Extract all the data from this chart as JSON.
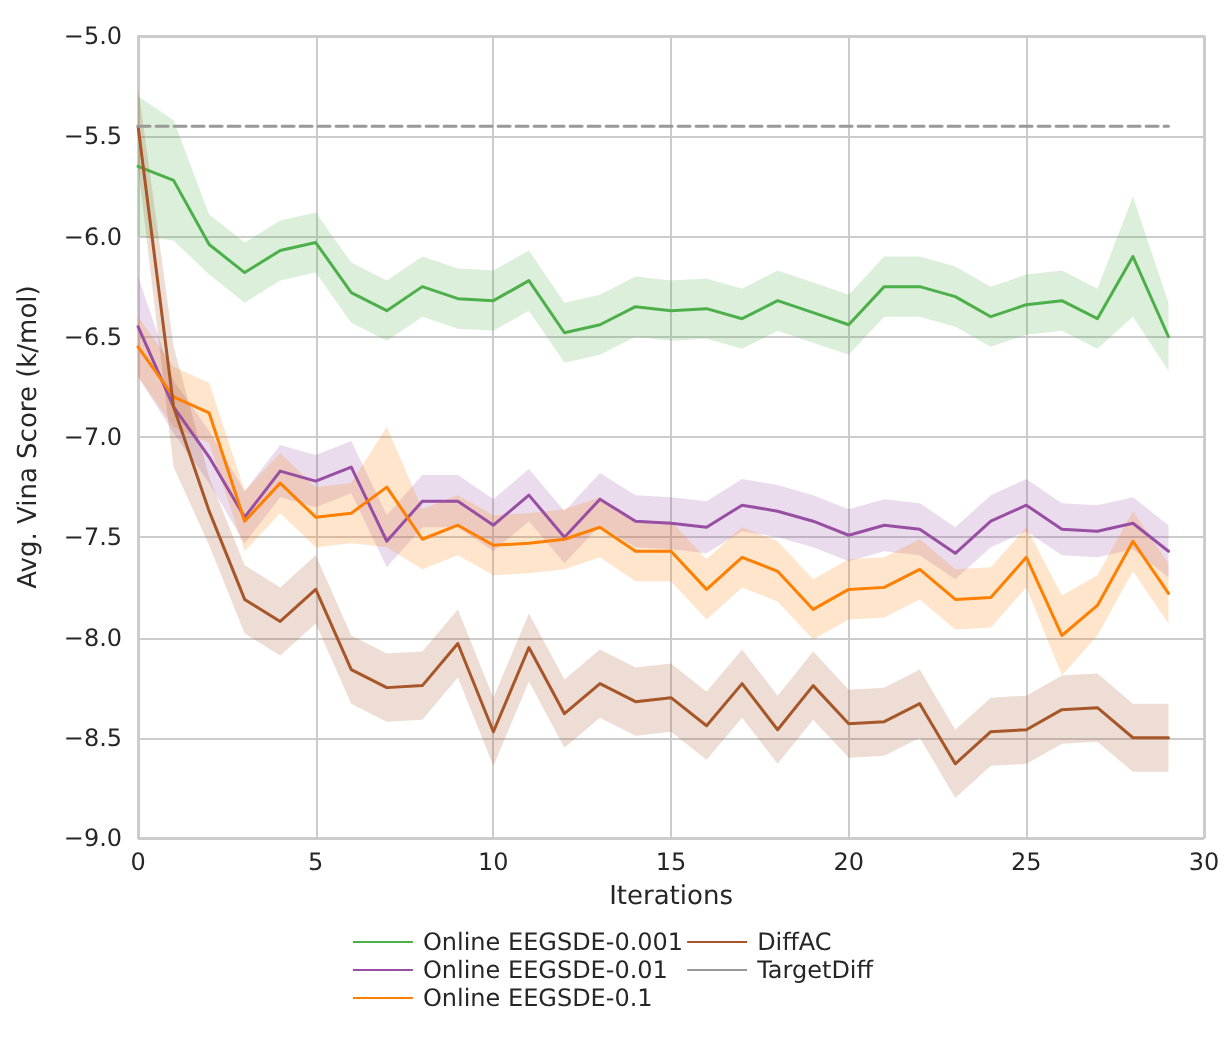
{
  "chart_data": {
    "type": "line",
    "xlabel": "Iterations",
    "ylabel": "Avg. Vina Score (k/mol)",
    "x": [
      0,
      1,
      2,
      3,
      4,
      5,
      6,
      7,
      8,
      9,
      10,
      11,
      12,
      13,
      14,
      15,
      16,
      17,
      18,
      19,
      20,
      21,
      22,
      23,
      24,
      25,
      26,
      27,
      28,
      29
    ],
    "series": [
      {
        "name": "Online EEGSDE-0.001",
        "color": "#4daf4a",
        "values": [
          -5.65,
          -5.72,
          -6.04,
          -6.18,
          -6.07,
          -6.03,
          -6.28,
          -6.37,
          -6.25,
          -6.31,
          -6.32,
          -6.22,
          -6.48,
          -6.44,
          -6.35,
          -6.37,
          -6.36,
          -6.41,
          -6.32,
          -6.38,
          -6.44,
          -6.25,
          -6.25,
          -6.3,
          -6.4,
          -6.34,
          -6.32,
          -6.41,
          -6.1,
          -6.5
        ],
        "upper": [
          -5.3,
          -5.42,
          -5.89,
          -6.03,
          -5.92,
          -5.88,
          -6.13,
          -6.22,
          -6.1,
          -6.16,
          -6.17,
          -6.07,
          -6.33,
          -6.29,
          -6.2,
          -6.22,
          -6.21,
          -6.26,
          -6.17,
          -6.23,
          -6.29,
          -6.1,
          -6.1,
          -6.15,
          -6.25,
          -6.19,
          -6.17,
          -6.26,
          -5.8,
          -6.33
        ],
        "lower": [
          -6.0,
          -6.02,
          -6.19,
          -6.33,
          -6.22,
          -6.18,
          -6.43,
          -6.52,
          -6.4,
          -6.46,
          -6.47,
          -6.37,
          -6.63,
          -6.59,
          -6.5,
          -6.52,
          -6.51,
          -6.56,
          -6.47,
          -6.53,
          -6.59,
          -6.4,
          -6.4,
          -6.45,
          -6.55,
          -6.49,
          -6.47,
          -6.56,
          -6.4,
          -6.67
        ]
      },
      {
        "name": "Online EEGSDE-0.01",
        "color": "#984ea3",
        "values": [
          -6.45,
          -6.85,
          -7.1,
          -7.4,
          -7.17,
          -7.22,
          -7.15,
          -7.52,
          -7.32,
          -7.32,
          -7.44,
          -7.29,
          -7.5,
          -7.31,
          -7.42,
          -7.43,
          -7.45,
          -7.34,
          -7.37,
          -7.42,
          -7.49,
          -7.44,
          -7.46,
          -7.58,
          -7.42,
          -7.34,
          -7.46,
          -7.47,
          -7.43,
          -7.57
        ],
        "upper": [
          -6.2,
          -6.72,
          -6.97,
          -7.27,
          -7.04,
          -7.09,
          -7.02,
          -7.39,
          -7.19,
          -7.19,
          -7.31,
          -7.16,
          -7.37,
          -7.18,
          -7.29,
          -7.3,
          -7.32,
          -7.21,
          -7.24,
          -7.29,
          -7.36,
          -7.31,
          -7.33,
          -7.45,
          -7.29,
          -7.21,
          -7.33,
          -7.34,
          -7.3,
          -7.44
        ],
        "lower": [
          -6.7,
          -6.98,
          -7.23,
          -7.53,
          -7.3,
          -7.35,
          -7.28,
          -7.65,
          -7.45,
          -7.45,
          -7.57,
          -7.42,
          -7.63,
          -7.44,
          -7.55,
          -7.56,
          -7.58,
          -7.47,
          -7.5,
          -7.55,
          -7.62,
          -7.57,
          -7.59,
          -7.71,
          -7.55,
          -7.47,
          -7.59,
          -7.6,
          -7.56,
          -7.7
        ]
      },
      {
        "name": "Online EEGSDE-0.1",
        "color": "#ff7f00",
        "values": [
          -6.55,
          -6.8,
          -6.88,
          -7.42,
          -7.23,
          -7.4,
          -7.38,
          -7.25,
          -7.51,
          -7.44,
          -7.54,
          -7.53,
          -7.51,
          -7.45,
          -7.57,
          -7.57,
          -7.76,
          -7.6,
          -7.67,
          -7.86,
          -7.76,
          -7.75,
          -7.66,
          -7.81,
          -7.8,
          -7.6,
          -7.99,
          -7.84,
          -7.52,
          -7.78
        ],
        "upper": [
          -6.4,
          -6.65,
          -6.73,
          -7.27,
          -7.08,
          -7.25,
          -7.23,
          -6.95,
          -7.36,
          -7.29,
          -7.39,
          -7.38,
          -7.36,
          -7.3,
          -7.42,
          -7.42,
          -7.61,
          -7.45,
          -7.52,
          -7.71,
          -7.61,
          -7.6,
          -7.51,
          -7.66,
          -7.65,
          -7.45,
          -7.79,
          -7.69,
          -7.37,
          -7.63
        ],
        "lower": [
          -6.7,
          -6.95,
          -7.03,
          -7.57,
          -7.38,
          -7.55,
          -7.53,
          -7.55,
          -7.66,
          -7.59,
          -7.69,
          -7.68,
          -7.66,
          -7.6,
          -7.72,
          -7.72,
          -7.91,
          -7.75,
          -7.82,
          -8.01,
          -7.91,
          -7.9,
          -7.81,
          -7.96,
          -7.95,
          -7.75,
          -8.19,
          -7.99,
          -7.67,
          -7.93
        ]
      },
      {
        "name": "DiffAC",
        "color": "#a65628",
        "values": [
          -5.45,
          -6.85,
          -7.37,
          -7.81,
          -7.92,
          -7.76,
          -8.16,
          -8.25,
          -8.24,
          -8.03,
          -8.47,
          -8.05,
          -8.38,
          -8.23,
          -8.32,
          -8.3,
          -8.44,
          -8.23,
          -8.46,
          -8.24,
          -8.43,
          -8.42,
          -8.33,
          -8.63,
          -8.47,
          -8.46,
          -8.36,
          -8.35,
          -8.5,
          -8.5
        ],
        "upper": [
          -5.25,
          -6.55,
          -7.2,
          -7.64,
          -7.75,
          -7.59,
          -7.99,
          -8.08,
          -8.07,
          -7.86,
          -8.3,
          -7.88,
          -8.21,
          -8.06,
          -8.15,
          -8.13,
          -8.27,
          -8.06,
          -8.29,
          -8.07,
          -8.26,
          -8.25,
          -8.16,
          -8.46,
          -8.3,
          -8.29,
          -8.19,
          -8.18,
          -8.33,
          -8.33
        ],
        "lower": [
          -5.65,
          -7.15,
          -7.54,
          -7.98,
          -8.09,
          -7.93,
          -8.33,
          -8.42,
          -8.41,
          -8.2,
          -8.64,
          -8.22,
          -8.55,
          -8.4,
          -8.49,
          -8.47,
          -8.61,
          -8.4,
          -8.63,
          -8.41,
          -8.6,
          -8.59,
          -8.5,
          -8.8,
          -8.64,
          -8.63,
          -8.53,
          -8.52,
          -8.67,
          -8.67
        ]
      },
      {
        "name": "TargetDiff",
        "color": "#999999",
        "line_style": "dashed",
        "x": [
          0,
          29
        ],
        "values": [
          -5.45,
          -5.45
        ]
      }
    ],
    "xlim": [
      0,
      30
    ],
    "xticks": [
      0,
      5,
      10,
      15,
      20,
      25,
      30
    ],
    "ylim": [
      -9,
      -5
    ],
    "yticks": [
      {
        "value": -9,
        "label": "−9.0"
      },
      {
        "value": -8.5,
        "label": "−8.5"
      },
      {
        "value": -8,
        "label": "−8.0"
      },
      {
        "value": -7.5,
        "label": "−7.5"
      },
      {
        "value": -7,
        "label": "−7.0"
      },
      {
        "value": -6.5,
        "label": "−6.5"
      },
      {
        "value": -6,
        "label": "−6.0"
      },
      {
        "value": -5.5,
        "label": "−5.5"
      },
      {
        "value": -5,
        "label": "−5.0"
      }
    ],
    "grid": true,
    "legend": "bottom",
    "marker": "none",
    "line_style": "solid"
  }
}
